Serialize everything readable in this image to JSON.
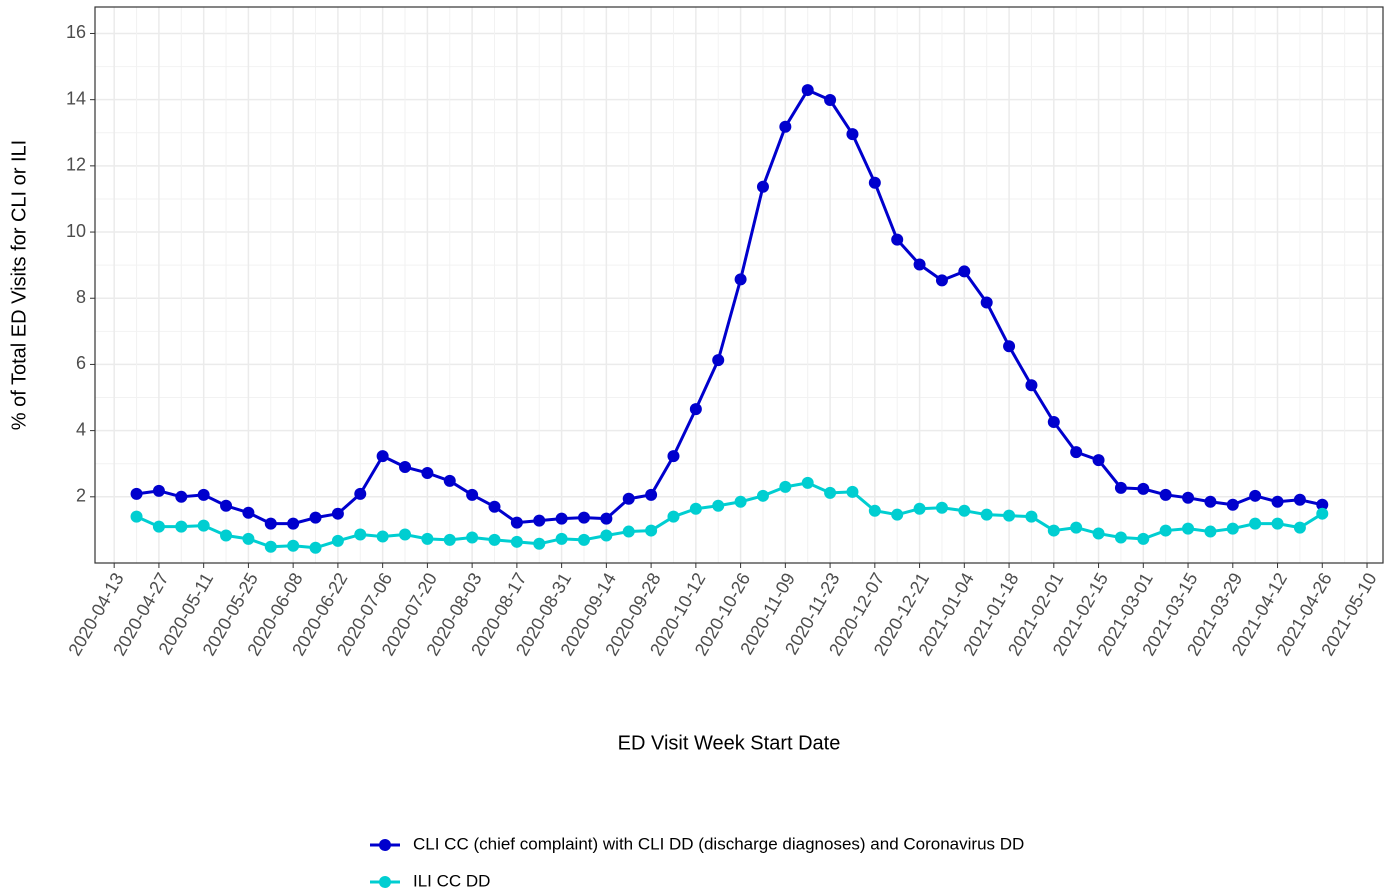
{
  "chart_data": {
    "type": "line",
    "x_label": "ED Visit Week Start Date",
    "y_label": "% of Total ED Visits for CLI or ILI",
    "x": [
      "2020-04-20",
      "2020-04-27",
      "2020-05-04",
      "2020-05-11",
      "2020-05-18",
      "2020-05-25",
      "2020-06-01",
      "2020-06-08",
      "2020-06-15",
      "2020-06-22",
      "2020-06-29",
      "2020-07-06",
      "2020-07-13",
      "2020-07-20",
      "2020-07-27",
      "2020-08-03",
      "2020-08-10",
      "2020-08-17",
      "2020-08-24",
      "2020-08-31",
      "2020-09-07",
      "2020-09-14",
      "2020-09-21",
      "2020-09-28",
      "2020-10-05",
      "2020-10-12",
      "2020-10-19",
      "2020-10-26",
      "2020-11-02",
      "2020-11-09",
      "2020-11-16",
      "2020-11-23",
      "2020-11-30",
      "2020-12-07",
      "2020-12-14",
      "2020-12-21",
      "2020-12-28",
      "2021-01-04",
      "2021-01-11",
      "2021-01-18",
      "2021-01-25",
      "2021-02-01",
      "2021-02-08",
      "2021-02-15",
      "2021-02-22",
      "2021-03-01",
      "2021-03-08",
      "2021-03-15",
      "2021-03-22",
      "2021-03-29",
      "2021-04-05",
      "2021-04-12",
      "2021-04-19",
      "2021-04-26"
    ],
    "series": [
      {
        "name": "CLI CC (chief complaint) with CLI DD (discharge diagnoses) and Coronavirus DD",
        "color": "#0000cd",
        "values": [
          2.09,
          2.18,
          2.0,
          2.06,
          1.73,
          1.52,
          1.19,
          1.19,
          1.37,
          1.49,
          2.09,
          3.23,
          2.9,
          2.72,
          2.48,
          2.06,
          1.7,
          1.22,
          1.28,
          1.34,
          1.37,
          1.34,
          1.94,
          2.06,
          3.23,
          4.65,
          6.13,
          8.57,
          11.37,
          13.18,
          14.29,
          13.99,
          12.96,
          11.49,
          9.77,
          9.02,
          8.54,
          8.81,
          7.87,
          6.55,
          5.37,
          4.26,
          3.35,
          3.11,
          2.27,
          2.24,
          2.06,
          1.97,
          1.85,
          1.76,
          2.03,
          1.85,
          1.91,
          1.76
        ]
      },
      {
        "name": "ILI CC DD",
        "color": "#00ced1",
        "values": [
          1.4,
          1.1,
          1.1,
          1.13,
          0.83,
          0.73,
          0.49,
          0.52,
          0.46,
          0.67,
          0.86,
          0.8,
          0.86,
          0.73,
          0.7,
          0.77,
          0.7,
          0.64,
          0.58,
          0.73,
          0.7,
          0.83,
          0.95,
          0.98,
          1.4,
          1.64,
          1.73,
          1.85,
          2.03,
          2.3,
          2.42,
          2.12,
          2.15,
          1.58,
          1.46,
          1.64,
          1.67,
          1.58,
          1.46,
          1.43,
          1.4,
          0.98,
          1.07,
          0.89,
          0.77,
          0.73,
          0.98,
          1.04,
          0.95,
          1.04,
          1.19,
          1.19,
          1.07,
          1.49
        ]
      }
    ],
    "xlim": [
      "2020-04-07",
      "2021-05-15"
    ],
    "xticks": [
      "2020-04-13",
      "2020-04-27",
      "2020-05-11",
      "2020-05-25",
      "2020-06-08",
      "2020-06-22",
      "2020-07-06",
      "2020-07-20",
      "2020-08-03",
      "2020-08-17",
      "2020-08-31",
      "2020-09-14",
      "2020-09-28",
      "2020-10-12",
      "2020-10-26",
      "2020-11-09",
      "2020-11-23",
      "2020-12-07",
      "2020-12-21",
      "2021-01-04",
      "2021-01-18",
      "2021-02-01",
      "2021-02-15",
      "2021-03-01",
      "2021-03-15",
      "2021-03-29",
      "2021-04-12",
      "2021-04-26",
      "2021-05-10"
    ],
    "ylim": [
      0,
      16.8
    ],
    "yticks": [
      2,
      4,
      6,
      8,
      10,
      12,
      14,
      16
    ],
    "grid": true,
    "legend": "bottom"
  }
}
